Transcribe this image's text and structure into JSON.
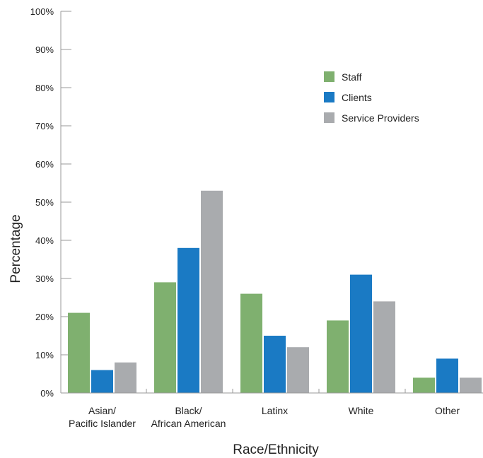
{
  "chart_data": {
    "type": "bar",
    "title": "",
    "xlabel": "Race/Ethnicity",
    "ylabel": "Percentage",
    "ylim": [
      0,
      100
    ],
    "yticks": [
      "0%",
      "10%",
      "20%",
      "30%",
      "40%",
      "50%",
      "60%",
      "70%",
      "80%",
      "90%",
      "100%"
    ],
    "categories": [
      [
        "Asian/",
        "Pacific Islander"
      ],
      [
        "Black/",
        "African American"
      ],
      [
        "Latinx"
      ],
      [
        "White"
      ],
      [
        "Other"
      ]
    ],
    "series": [
      {
        "name": "Staff",
        "color": "#7fb06f",
        "values": [
          21,
          29,
          26,
          19,
          4
        ]
      },
      {
        "name": "Clients",
        "color": "#1a7ac4",
        "values": [
          6,
          38,
          15,
          31,
          9
        ]
      },
      {
        "name": "Service Providers",
        "color": "#a9abae",
        "values": [
          8,
          53,
          12,
          24,
          4
        ]
      }
    ],
    "grid": false,
    "legend_position": "top-right"
  }
}
